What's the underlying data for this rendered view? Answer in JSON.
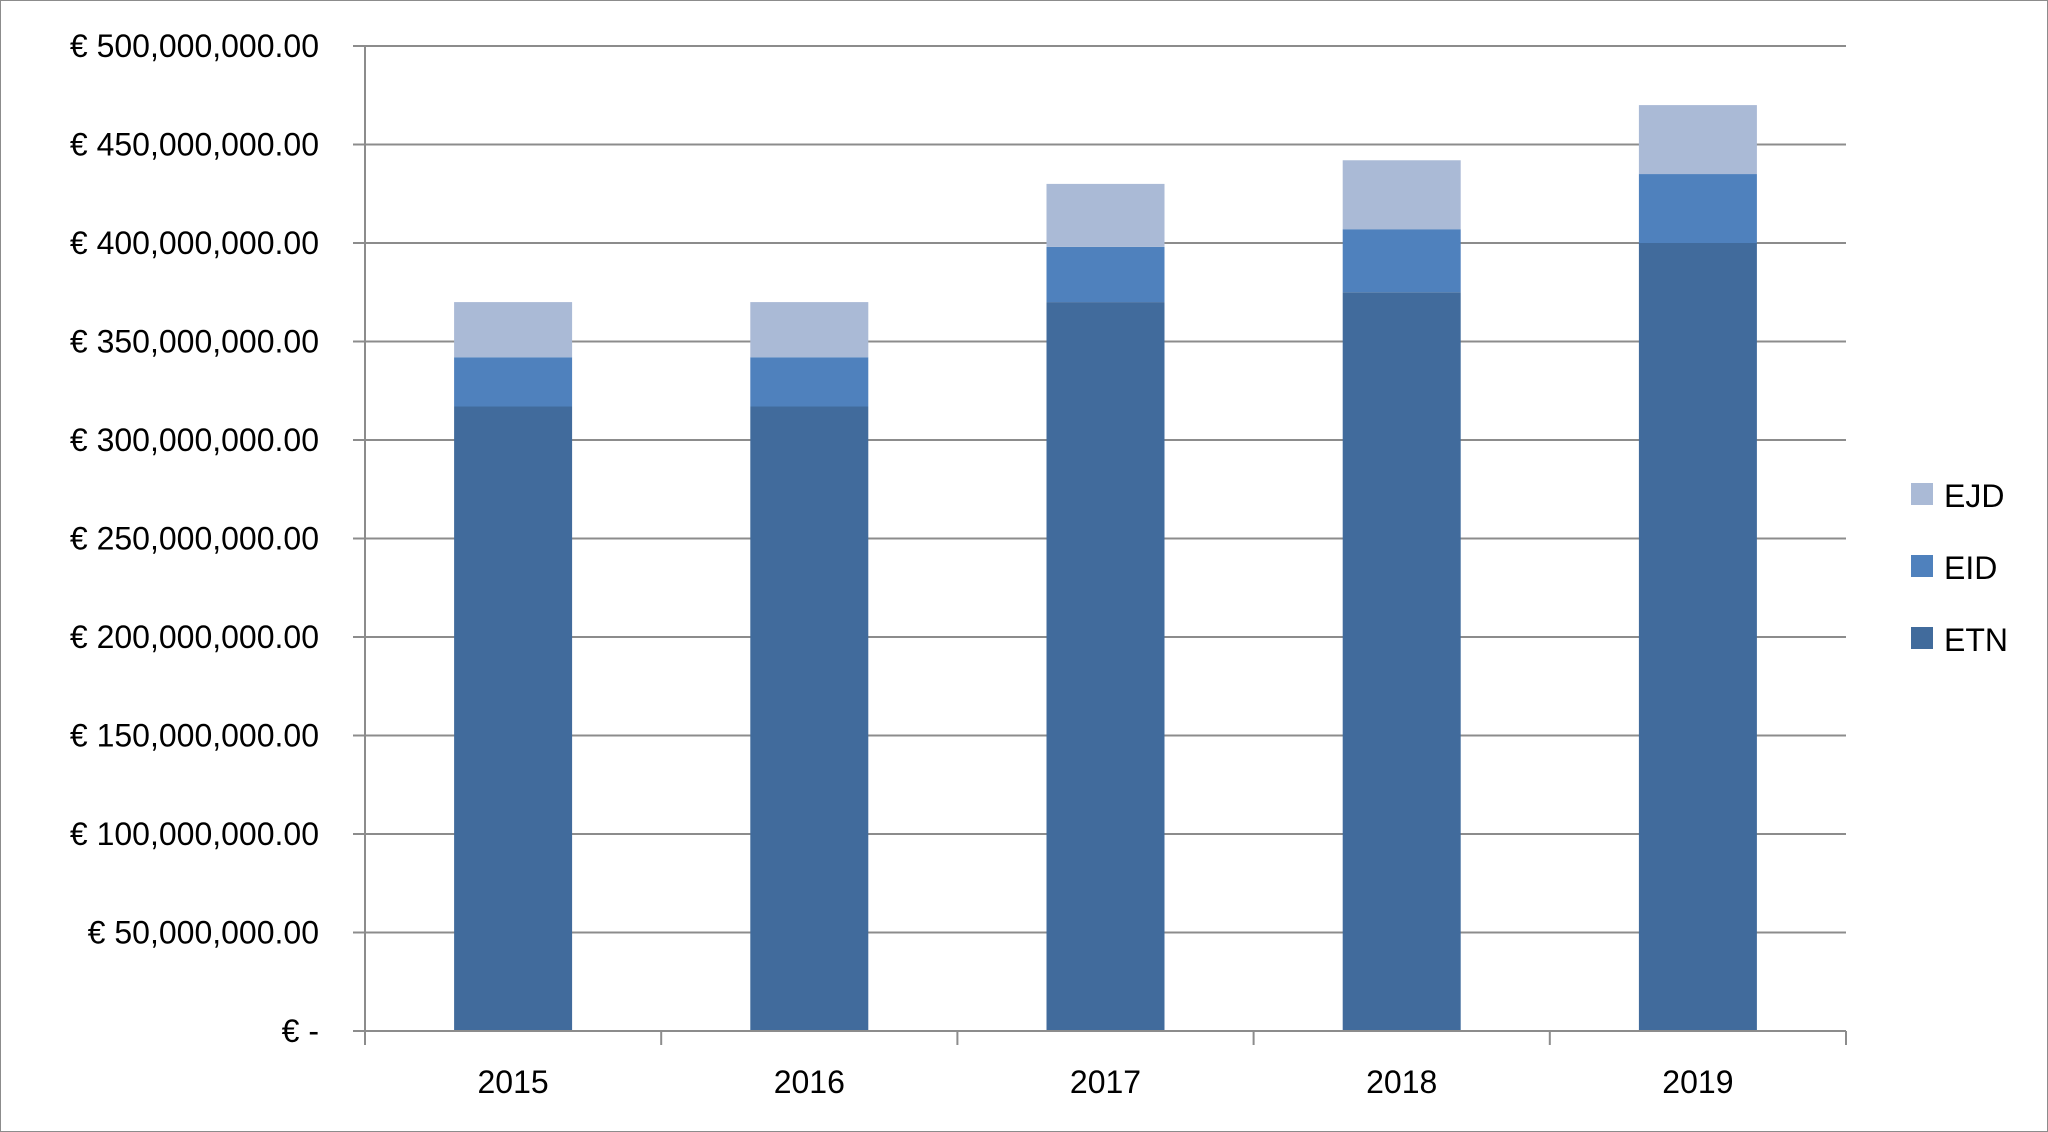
{
  "chart_data": {
    "type": "bar",
    "stacked": true,
    "categories": [
      "2015",
      "2016",
      "2017",
      "2018",
      "2019"
    ],
    "series": [
      {
        "name": "ETN",
        "color": "#416b9c",
        "values": [
          317000000,
          317000000,
          370000000,
          375000000,
          400000000
        ]
      },
      {
        "name": "EID",
        "color": "#4f81bd",
        "values": [
          25000000,
          25000000,
          28000000,
          32000000,
          35000000
        ]
      },
      {
        "name": "EJD",
        "color": "#aabad6",
        "values": [
          28000000,
          28000000,
          32000000,
          35000000,
          35000000
        ]
      }
    ],
    "ylim": [
      0,
      500000000
    ],
    "yticks": [
      0,
      50000000,
      100000000,
      150000000,
      200000000,
      250000000,
      300000000,
      350000000,
      400000000,
      450000000,
      500000000
    ],
    "ytick_labels": [
      "€ -",
      "€ 50,000,000.00",
      "€ 100,000,000.00",
      "€ 150,000,000.00",
      "€ 200,000,000.00",
      "€ 250,000,000.00",
      "€ 300,000,000.00",
      "€ 350,000,000.00",
      "€ 400,000,000.00",
      "€ 450,000,000.00",
      "€ 500,000,000.00"
    ],
    "legend_order": [
      "EJD",
      "EID",
      "ETN"
    ],
    "legend_position": "right",
    "grid": true,
    "gridline_color": "#8c8c8c",
    "title": "",
    "xlabel": "",
    "ylabel": ""
  }
}
